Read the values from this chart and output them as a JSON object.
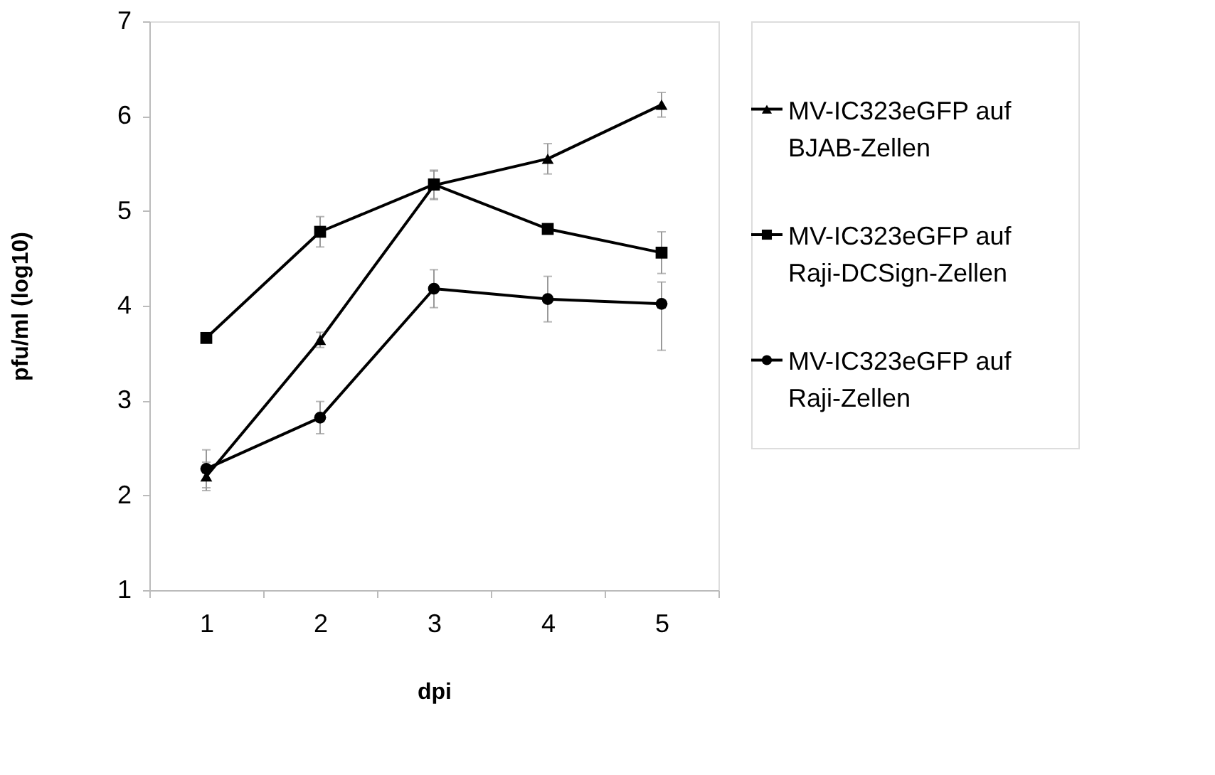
{
  "chart_data": {
    "type": "line",
    "xlabel": "dpi",
    "ylabel": "pfu/ml (log10)",
    "categories": [
      "1",
      "2",
      "3",
      "4",
      "5"
    ],
    "series": [
      {
        "name": "MV-IC323eGFP auf BJAB-Zellen",
        "color": "#000000",
        "marker": "triangle",
        "values": [
          2.2,
          3.64,
          5.27,
          5.55,
          6.12
        ],
        "errors": [
          0.15,
          0.08,
          0.15,
          0.16,
          0.13
        ]
      },
      {
        "name": "MV-IC323eGFP auf Raji-DCSign-Zellen",
        "color": "#000000",
        "marker": "square",
        "values": [
          3.66,
          4.78,
          5.28,
          4.81,
          4.56
        ],
        "errors": [
          0.04,
          0.16,
          0.15,
          0.05,
          0.22
        ]
      },
      {
        "name": "MV-IC323eGFP auf Raji-Zellen",
        "color": "#000000",
        "marker": "circle",
        "values": [
          2.28,
          2.82,
          4.18,
          4.07,
          4.02
        ],
        "errors": [
          0.2,
          0.17,
          0.2,
          0.24,
          [
            3.53,
            4.25
          ]
        ]
      }
    ],
    "ylim": [
      1,
      7
    ],
    "yticks": [
      1,
      2,
      3,
      4,
      5,
      6,
      7
    ],
    "grid": false,
    "legend": "right",
    "line_style": "solid"
  }
}
